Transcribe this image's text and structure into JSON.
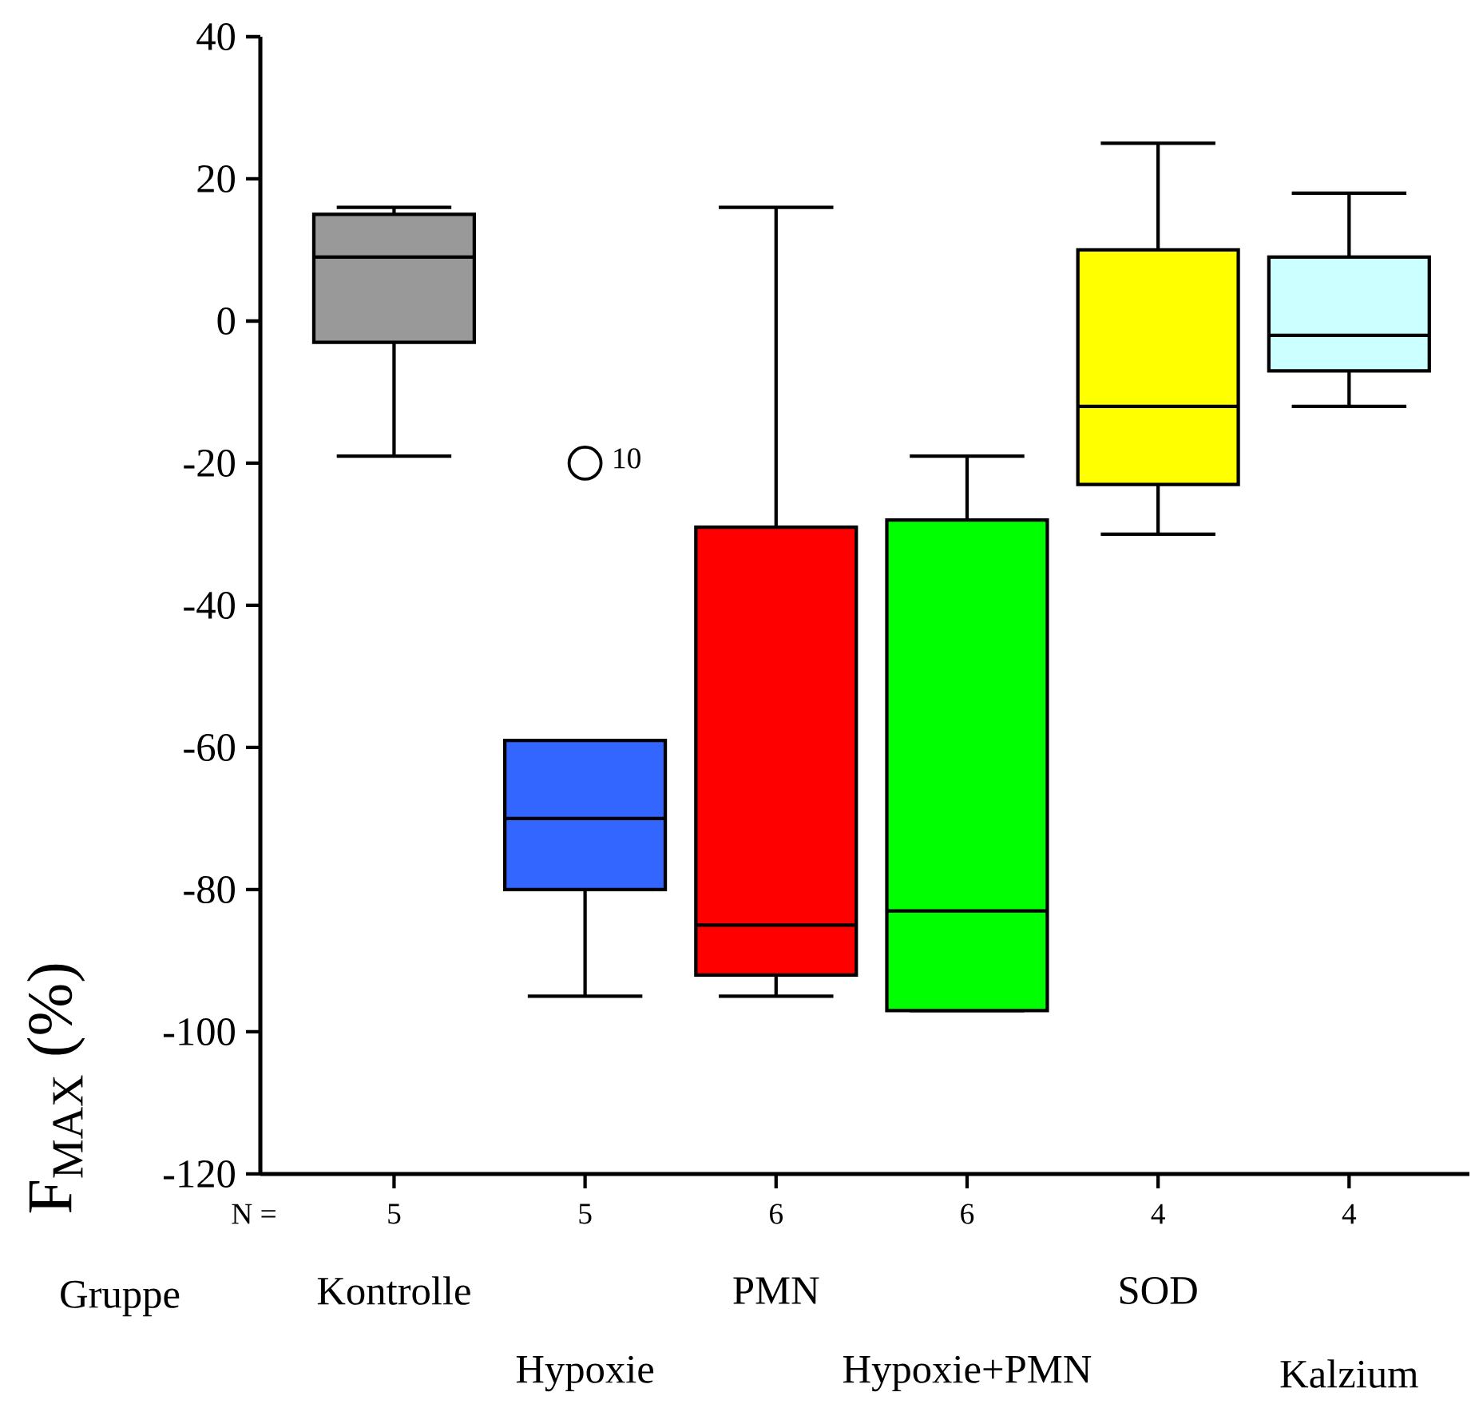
{
  "chart_data": {
    "type": "box",
    "ylabel": "F$_{MAX}$  (%)",
    "categories": [
      "Kontrolle",
      "Hypoxie",
      "PMN",
      "Hypoxie+PMN",
      "SOD",
      "Kalzium"
    ],
    "colors": [
      "#999999",
      "#3366ff",
      "#ff0000",
      "#00ff00",
      "#ffff00",
      "#ccffff"
    ],
    "boxes": [
      {
        "low": -19,
        "q1": -3,
        "median": 9,
        "q3": 15,
        "high": 16
      },
      {
        "low": -95,
        "q1": -80,
        "median": -70,
        "q3": -59,
        "high": -59,
        "outliers": [
          -20
        ]
      },
      {
        "low": -95,
        "q1": -92,
        "median": -85,
        "q3": -29,
        "high": 16
      },
      {
        "low": -97,
        "q1": -97,
        "median": -83,
        "q3": -28,
        "high": -19
      },
      {
        "low": -30,
        "q1": -23,
        "median": -12,
        "q3": 10,
        "high": 25
      },
      {
        "low": -12,
        "q1": -7,
        "median": -2,
        "q3": 9,
        "high": 18
      }
    ],
    "ylim": [
      -120,
      40
    ],
    "yticks": [
      -120,
      -100,
      -80,
      -60,
      -40,
      -20,
      0,
      20,
      40
    ],
    "annotations": [
      "N =",
      "Gruppe",
      "5",
      "5",
      "6",
      "6",
      "4",
      "4",
      "10"
    ],
    "grid": false
  }
}
